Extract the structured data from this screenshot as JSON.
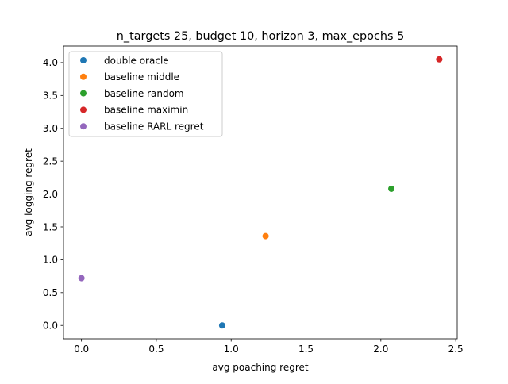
{
  "chart_data": {
    "type": "scatter",
    "title": "n_targets 25, budget 10, horizon 3, max_epochs 5",
    "xlabel": "avg poaching regret",
    "ylabel": "avg logging regret",
    "xlim": [
      -0.12,
      2.51
    ],
    "ylim": [
      -0.2025,
      4.2525
    ],
    "xticks": [
      0.0,
      0.5,
      1.0,
      1.5,
      2.0,
      2.5
    ],
    "xtick_labels": [
      "0.0",
      "0.5",
      "1.0",
      "1.5",
      "2.0",
      "2.5"
    ],
    "yticks": [
      0.0,
      0.5,
      1.0,
      1.5,
      2.0,
      2.5,
      3.0,
      3.5,
      4.0
    ],
    "ytick_labels": [
      "0.0",
      "0.5",
      "1.0",
      "1.5",
      "2.0",
      "2.5",
      "3.0",
      "3.5",
      "4.0"
    ],
    "grid": false,
    "legend_position": "top-left",
    "series": [
      {
        "name": "double oracle",
        "color": "#1f77b4",
        "x": [
          0.94
        ],
        "y": [
          0.0
        ]
      },
      {
        "name": "baseline middle",
        "color": "#ff7f0e",
        "x": [
          1.23
        ],
        "y": [
          1.36
        ]
      },
      {
        "name": "baseline random",
        "color": "#2ca02c",
        "x": [
          2.07
        ],
        "y": [
          2.08
        ]
      },
      {
        "name": "baseline maximin",
        "color": "#d62728",
        "x": [
          2.39
        ],
        "y": [
          4.05
        ]
      },
      {
        "name": "baseline RARL regret",
        "color": "#9467bd",
        "x": [
          0.0
        ],
        "y": [
          0.72
        ]
      }
    ]
  }
}
